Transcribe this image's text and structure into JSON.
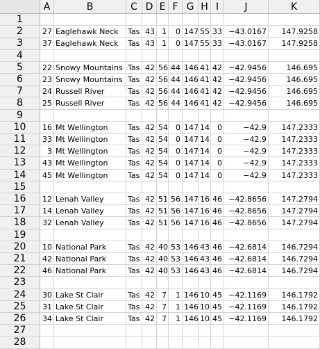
{
  "columns": [
    "A",
    "B",
    "C",
    "D",
    "E",
    "F",
    "G",
    "H",
    "I",
    "J",
    "K"
  ],
  "rows": [
    {
      "num": "1",
      "cells": [
        "",
        "",
        "",
        "",
        "",
        "",
        "",
        "",
        "",
        "",
        ""
      ]
    },
    {
      "num": "2",
      "cells": [
        "27",
        "Eaglehawk Neck",
        "Tas",
        "43",
        "1",
        "0",
        "147",
        "55",
        "33",
        "−43.0167",
        "147.9258"
      ]
    },
    {
      "num": "3",
      "cells": [
        "37",
        "Eaglehawk Neck",
        "Tas",
        "43",
        "1",
        "0",
        "147",
        "55",
        "33",
        "−43.0167",
        "147.9258"
      ]
    },
    {
      "num": "4",
      "cells": [
        "",
        "",
        "",
        "",
        "",
        "",
        "",
        "",
        "",
        "",
        ""
      ]
    },
    {
      "num": "5",
      "cells": [
        "22",
        "Snowy Mountains",
        "Tas",
        "42",
        "56",
        "44",
        "146",
        "41",
        "42",
        "−42.9456",
        "146.695"
      ]
    },
    {
      "num": "6",
      "cells": [
        "23",
        "Snowy Mountains",
        "Tas",
        "42",
        "56",
        "44",
        "146",
        "41",
        "42",
        "−42.9456",
        "146.695"
      ]
    },
    {
      "num": "7",
      "cells": [
        "24",
        "Russell River",
        "Tas",
        "42",
        "56",
        "44",
        "146",
        "41",
        "42",
        "−42.9456",
        "146.695"
      ]
    },
    {
      "num": "8",
      "cells": [
        "25",
        "Russell River",
        "Tas",
        "42",
        "56",
        "44",
        "146",
        "41",
        "42",
        "−42.9456",
        "146.695"
      ]
    },
    {
      "num": "9",
      "cells": [
        "",
        "",
        "",
        "",
        "",
        "",
        "",
        "",
        "",
        "",
        ""
      ]
    },
    {
      "num": "10",
      "cells": [
        "16",
        "Mt Wellington",
        "Tas",
        "42",
        "54",
        "0",
        "147",
        "14",
        "0",
        "−42.9",
        "147.2333"
      ]
    },
    {
      "num": "11",
      "cells": [
        "33",
        "Mt Wellington",
        "Tas",
        "42",
        "54",
        "0",
        "147",
        "14",
        "0",
        "−42.9",
        "147.2333"
      ]
    },
    {
      "num": "12",
      "cells": [
        "3",
        "Mt Wellington",
        "Tas",
        "42",
        "54",
        "0",
        "147",
        "14",
        "0",
        "−42.9",
        "147.2333"
      ]
    },
    {
      "num": "13",
      "cells": [
        "43",
        "Mt Wellington",
        "Tas",
        "42",
        "54",
        "0",
        "147",
        "14",
        "0",
        "−42.9",
        "147.2333"
      ]
    },
    {
      "num": "14",
      "cells": [
        "45",
        "Mt Wellington",
        "Tas",
        "42",
        "54",
        "0",
        "147",
        "14",
        "0",
        "−42.9",
        "147.2333"
      ]
    },
    {
      "num": "15",
      "cells": [
        "",
        "",
        "",
        "",
        "",
        "",
        "",
        "",
        "",
        "",
        ""
      ]
    },
    {
      "num": "16",
      "cells": [
        "12",
        "Lenah Valley",
        "Tas",
        "42",
        "51",
        "56",
        "147",
        "16",
        "46",
        "−42.8656",
        "147.2794"
      ]
    },
    {
      "num": "17",
      "cells": [
        "14",
        "Lenah Valley",
        "Tas",
        "42",
        "51",
        "56",
        "147",
        "16",
        "46",
        "−42.8656",
        "147.2794"
      ]
    },
    {
      "num": "18",
      "cells": [
        "32",
        "Lenah Valley",
        "Tas",
        "42",
        "51",
        "56",
        "147",
        "16",
        "46",
        "−42.8656",
        "147.2794"
      ]
    },
    {
      "num": "19",
      "cells": [
        "",
        "",
        "",
        "",
        "",
        "",
        "",
        "",
        "",
        "",
        ""
      ]
    },
    {
      "num": "20",
      "cells": [
        "10",
        "National Park",
        "Tas",
        "42",
        "40",
        "53",
        "146",
        "43",
        "46",
        "−42.6814",
        "146.7294"
      ]
    },
    {
      "num": "21",
      "cells": [
        "42",
        "National Park",
        "Tas",
        "42",
        "40",
        "53",
        "146",
        "43",
        "46",
        "−42.6814",
        "146.7294"
      ]
    },
    {
      "num": "22",
      "cells": [
        "46",
        "National Park",
        "Tas",
        "42",
        "40",
        "53",
        "146",
        "43",
        "46",
        "−42.6814",
        "146.7294"
      ]
    },
    {
      "num": "23",
      "cells": [
        "",
        "",
        "",
        "",
        "",
        "",
        "",
        "",
        "",
        "",
        ""
      ]
    },
    {
      "num": "24",
      "cells": [
        "30",
        "Lake St Clair",
        "Tas",
        "42",
        "7",
        "1",
        "146",
        "10",
        "45",
        "−42.1169",
        "146.1792"
      ]
    },
    {
      "num": "25",
      "cells": [
        "31",
        "Lake St Clair",
        "Tas",
        "42",
        "7",
        "1",
        "146",
        "10",
        "45",
        "−42.1169",
        "146.1792"
      ]
    },
    {
      "num": "26",
      "cells": [
        "34",
        "Lake St Clair",
        "Tas",
        "42",
        "7",
        "1",
        "146",
        "10",
        "45",
        "−42.1169",
        "146.1792"
      ]
    },
    {
      "num": "27",
      "cells": [
        "",
        "",
        "",
        "",
        "",
        "",
        "",
        "",
        "",
        "",
        ""
      ]
    },
    {
      "num": "28",
      "cells": [
        "",
        "",
        "",
        "",
        "",
        "",
        "",
        "",
        "",
        "",
        ""
      ]
    }
  ]
}
